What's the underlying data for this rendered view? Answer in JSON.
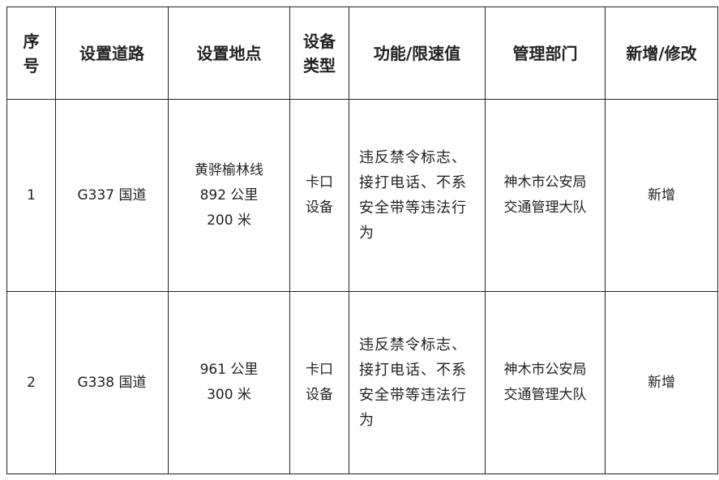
{
  "headers": [
    "序\n号",
    "设置道路",
    "设置地点",
    "设备\n类型",
    "功能/限速值",
    "管理部门",
    "新增/修改"
  ],
  "headers_lines": [
    [
      "序",
      "号"
    ],
    [
      "设置道路"
    ],
    [
      "设置地点"
    ],
    [
      "设备",
      "类型"
    ],
    [
      "功能/限速值"
    ],
    [
      "管理部门"
    ],
    [
      "新增/修改"
    ]
  ],
  "rows": [
    {
      "no": "1",
      "road": "G337 国道",
      "location": [
        "黄骅榆林线",
        "892 公里",
        "200 米"
      ],
      "type": [
        "卡口",
        "设备"
      ],
      "function": "违反禁令标志、接打电话、不系安全带等违法行为",
      "dept": [
        "神木市公安局",
        "交通管理大队"
      ],
      "action": "新增"
    },
    {
      "no": "2",
      "road": "G338 国道",
      "location": [
        "961 公里",
        "300 米"
      ],
      "type": [
        "卡口",
        "设备"
      ],
      "function": "违反禁令标志、接打电话、不系安全带等违法行为",
      "dept": [
        "神木市公安局",
        "交通管理大队"
      ],
      "action": "新增"
    }
  ]
}
